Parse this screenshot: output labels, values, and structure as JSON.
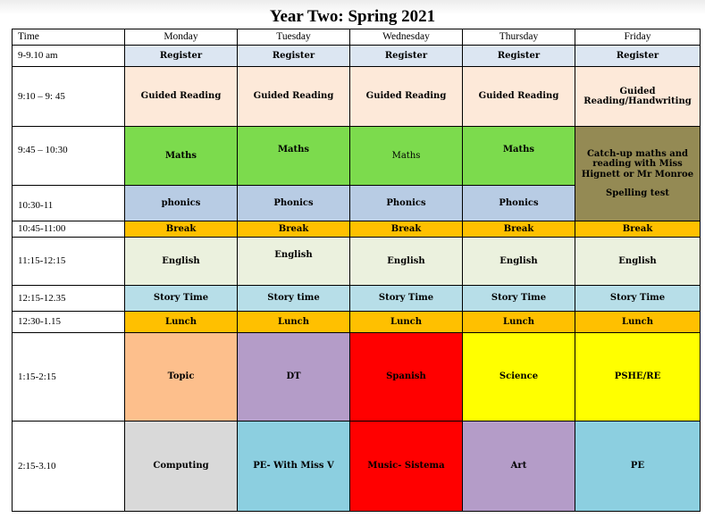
{
  "title": "Year Two: Spring 2021",
  "headers": [
    "Time",
    "Monday",
    "Tuesday",
    "Wednesday",
    "Thursday",
    "Friday"
  ],
  "rows": {
    "register": {
      "time": "9-9.10 am",
      "cells": [
        "Register",
        "Register",
        "Register",
        "Register",
        "Register"
      ]
    },
    "reading": {
      "time": "9:10 – 9: 45",
      "cells": [
        "Guided Reading",
        "Guided Reading",
        "Guided Reading",
        "Guided Reading",
        "Guided Reading/Handwriting"
      ]
    },
    "maths": {
      "time": "9:45 – 10:30",
      "cells": [
        "Maths",
        "Maths",
        "Maths",
        "Maths"
      ]
    },
    "friday_block": {
      "line1": "Catch-up maths and reading  with Miss Hignett or Mr Monroe",
      "line2": "Spelling test"
    },
    "phonics": {
      "time": "10:30-11",
      "cells": [
        "phonics",
        "Phonics",
        "Phonics",
        "Phonics"
      ]
    },
    "break": {
      "time": "10:45-11:00",
      "cells": [
        "Break",
        "Break",
        "Break",
        "Break",
        "Break"
      ]
    },
    "english": {
      "time": "11:15-12:15",
      "cells": [
        "English",
        "English",
        "English",
        "English",
        "English"
      ]
    },
    "story": {
      "time": "12:15-12.35",
      "cells": [
        "Story Time",
        "Story time",
        "Story Time",
        "Story Time",
        "Story Time"
      ]
    },
    "lunch": {
      "time": "12:30-1.15",
      "cells": [
        "Lunch",
        "Lunch",
        "Lunch",
        "Lunch",
        "Lunch"
      ]
    },
    "afternoon1": {
      "time": "1:15-2:15",
      "cells": [
        "Topic",
        "DT",
        "Spanish",
        "Science",
        "PSHE/RE"
      ]
    },
    "afternoon2": {
      "time": "2:15-3.10",
      "cells": [
        "Computing",
        "PE- With Miss V",
        "Music- Sistema",
        "Art",
        "PE"
      ]
    }
  },
  "colors": {
    "register": "#dce6f2",
    "reading": "#fde9d9",
    "maths": "#7cdb4d",
    "phonics": "#b8cce4",
    "friday_block": "#948a54",
    "break": "#ffc000",
    "english": "#ebf1de",
    "story": "#b7dee8",
    "lunch": "#ffc000",
    "topic": "#fdbf8c",
    "dt": "#b49cc8",
    "spanish": "#ff0000",
    "science": "#ffff00",
    "computing": "#d9d9d9",
    "pe": "#8ccfe0",
    "art": "#b49cc8"
  }
}
